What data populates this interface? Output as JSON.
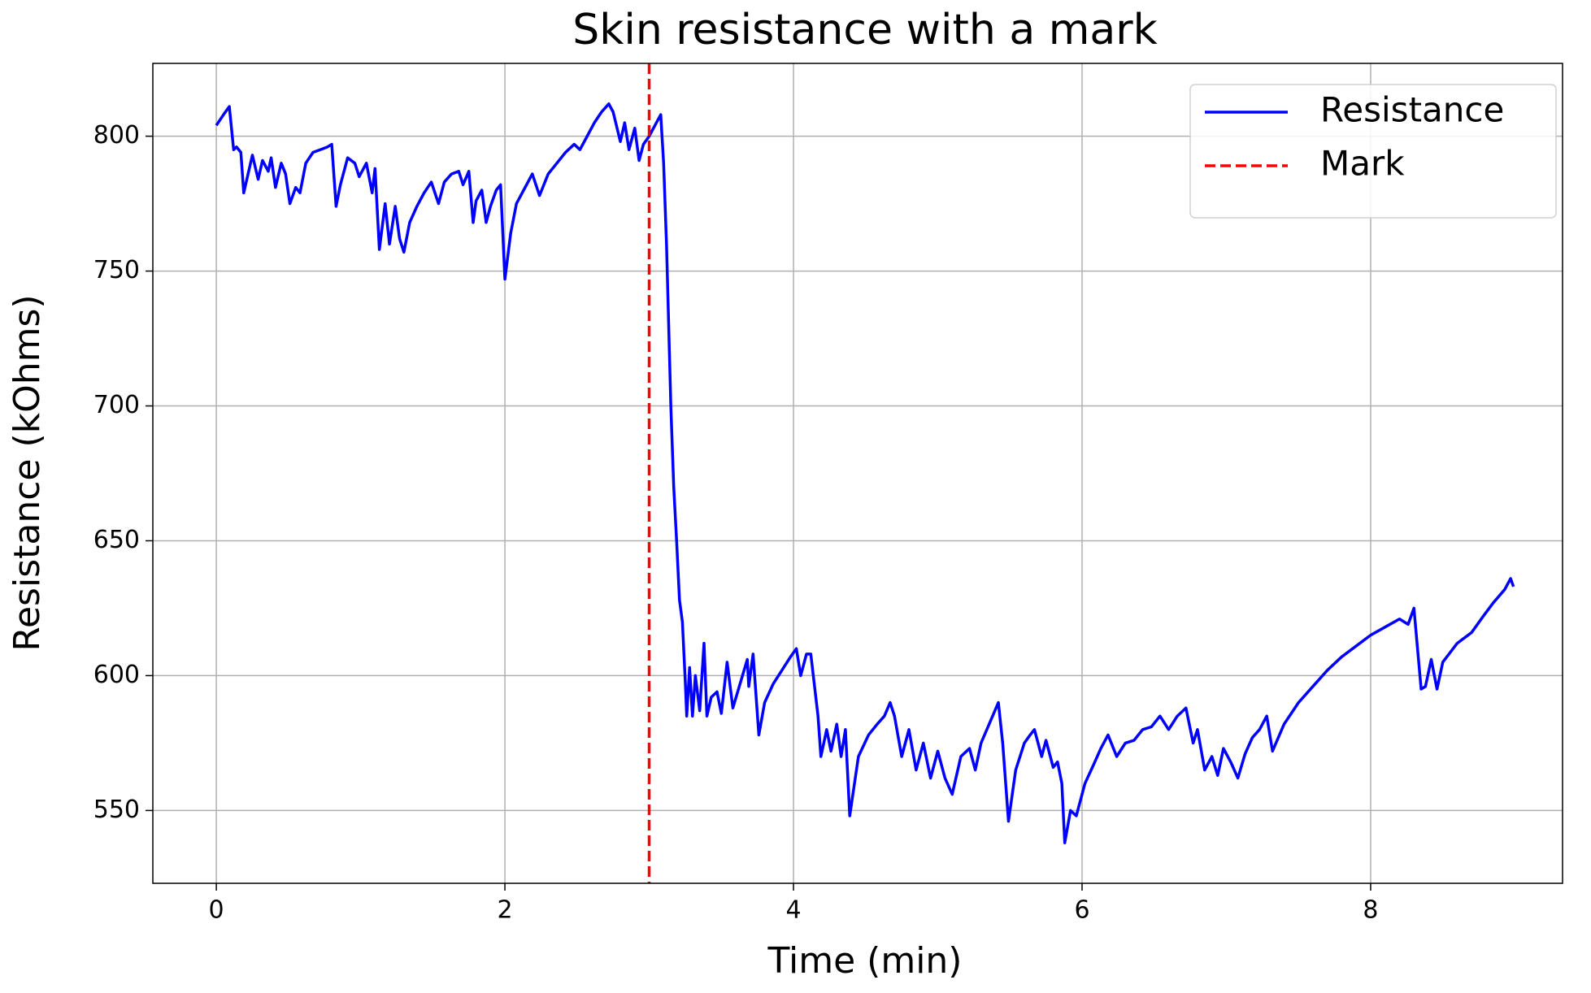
{
  "chart_data": {
    "type": "line",
    "title": "Skin resistance with a mark",
    "x_label": "Time (min)",
    "y_label": "Resistance (kOhms)",
    "x": [
      0,
      0.05,
      0.09,
      0.12,
      0.14,
      0.17,
      0.19,
      0.22,
      0.25,
      0.29,
      0.32,
      0.36,
      0.38,
      0.41,
      0.45,
      0.48,
      0.51,
      0.55,
      0.58,
      0.62,
      0.67,
      0.72,
      0.77,
      0.8,
      0.83,
      0.86,
      0.91,
      0.96,
      0.99,
      1.04,
      1.08,
      1.1,
      1.13,
      1.17,
      1.2,
      1.24,
      1.27,
      1.3,
      1.34,
      1.39,
      1.44,
      1.49,
      1.54,
      1.58,
      1.63,
      1.68,
      1.71,
      1.75,
      1.78,
      1.8,
      1.84,
      1.87,
      1.9,
      1.94,
      1.97,
      2.0,
      2.04,
      2.08,
      2.13,
      2.19,
      2.24,
      2.3,
      2.36,
      2.42,
      2.48,
      2.52,
      2.57,
      2.62,
      2.67,
      2.72,
      2.75,
      2.8,
      2.83,
      2.86,
      2.9,
      2.93,
      2.96,
      3.0,
      3.04,
      3.08,
      3.1,
      3.12,
      3.14,
      3.15,
      3.17,
      3.19,
      3.21,
      3.23,
      3.25,
      3.26,
      3.28,
      3.3,
      3.32,
      3.35,
      3.38,
      3.4,
      3.43,
      3.47,
      3.5,
      3.54,
      3.58,
      3.63,
      3.68,
      3.69,
      3.72,
      3.76,
      3.8,
      3.86,
      3.92,
      3.98,
      4.02,
      4.05,
      4.09,
      4.12,
      4.17,
      4.19,
      4.23,
      4.26,
      4.3,
      4.33,
      4.36,
      4.39,
      4.45,
      4.52,
      4.58,
      4.63,
      4.67,
      4.7,
      4.75,
      4.8,
      4.85,
      4.9,
      4.95,
      5.0,
      5.05,
      5.1,
      5.16,
      5.22,
      5.26,
      5.3,
      5.34,
      5.38,
      5.42,
      5.45,
      5.49,
      5.54,
      5.6,
      5.64,
      5.67,
      5.72,
      5.75,
      5.8,
      5.83,
      5.86,
      5.88,
      5.92,
      5.96,
      6.02,
      6.08,
      6.13,
      6.18,
      6.24,
      6.3,
      6.36,
      6.42,
      6.48,
      6.54,
      6.6,
      6.66,
      6.72,
      6.77,
      6.8,
      6.85,
      6.9,
      6.94,
      6.98,
      7.03,
      7.08,
      7.13,
      7.18,
      7.23,
      7.28,
      7.32,
      7.4,
      7.5,
      7.6,
      7.7,
      7.8,
      7.9,
      8.0,
      8.1,
      8.2,
      8.26,
      8.3,
      8.35,
      8.38,
      8.42,
      8.46,
      8.5,
      8.6,
      8.7,
      8.78,
      8.85,
      8.93,
      8.97,
      8.99
    ],
    "series": [
      {
        "name": "Resistance",
        "color": "#0000ff",
        "values": [
          804,
          808,
          811,
          795,
          796,
          794,
          779,
          786,
          793,
          784,
          791,
          787,
          792,
          781,
          790,
          786,
          775,
          781,
          779,
          790,
          794,
          795,
          796,
          797,
          774,
          782,
          792,
          790,
          785,
          790,
          779,
          788,
          758,
          775,
          760,
          774,
          762,
          757,
          768,
          774,
          779,
          783,
          775,
          783,
          786,
          787,
          782,
          787,
          768,
          776,
          780,
          768,
          774,
          780,
          782,
          747,
          764,
          775,
          780,
          786,
          778,
          786,
          790,
          794,
          797,
          795,
          800,
          805,
          809,
          812,
          809,
          798,
          805,
          795,
          803,
          791,
          797,
          800,
          804,
          808,
          790,
          760,
          720,
          700,
          670,
          650,
          628,
          620,
          598,
          585,
          603,
          585,
          600,
          587,
          612,
          585,
          592,
          594,
          586,
          605,
          588,
          597,
          606,
          596,
          608,
          578,
          590,
          597,
          602,
          607,
          610,
          600,
          608,
          608,
          585,
          570,
          580,
          572,
          582,
          570,
          580,
          548,
          570,
          578,
          582,
          585,
          590,
          585,
          570,
          580,
          565,
          575,
          562,
          572,
          562,
          556,
          570,
          573,
          565,
          575,
          580,
          585,
          590,
          575,
          546,
          565,
          575,
          578,
          580,
          570,
          576,
          566,
          568,
          560,
          538,
          550,
          548,
          560,
          567,
          573,
          578,
          570,
          575,
          576,
          580,
          581,
          585,
          580,
          585,
          588,
          575,
          580,
          565,
          570,
          563,
          573,
          568,
          562,
          571,
          577,
          580,
          585,
          572,
          582,
          590,
          596,
          602,
          607,
          611,
          615,
          618,
          621,
          619,
          625,
          595,
          596,
          606,
          595,
          605,
          612,
          616,
          622,
          627,
          632,
          636,
          633
        ]
      }
    ],
    "vlines": [
      {
        "name": "Mark",
        "x": 3,
        "color": "#ff0000",
        "linestyle": "dashed"
      }
    ],
    "xlim": [
      -0.44,
      9.33
    ],
    "ylim": [
      523,
      827
    ],
    "xticks": [
      0,
      2,
      4,
      6,
      8
    ],
    "yticks": [
      550,
      600,
      650,
      700,
      750,
      800
    ],
    "grid": true,
    "legend": "upper right"
  }
}
